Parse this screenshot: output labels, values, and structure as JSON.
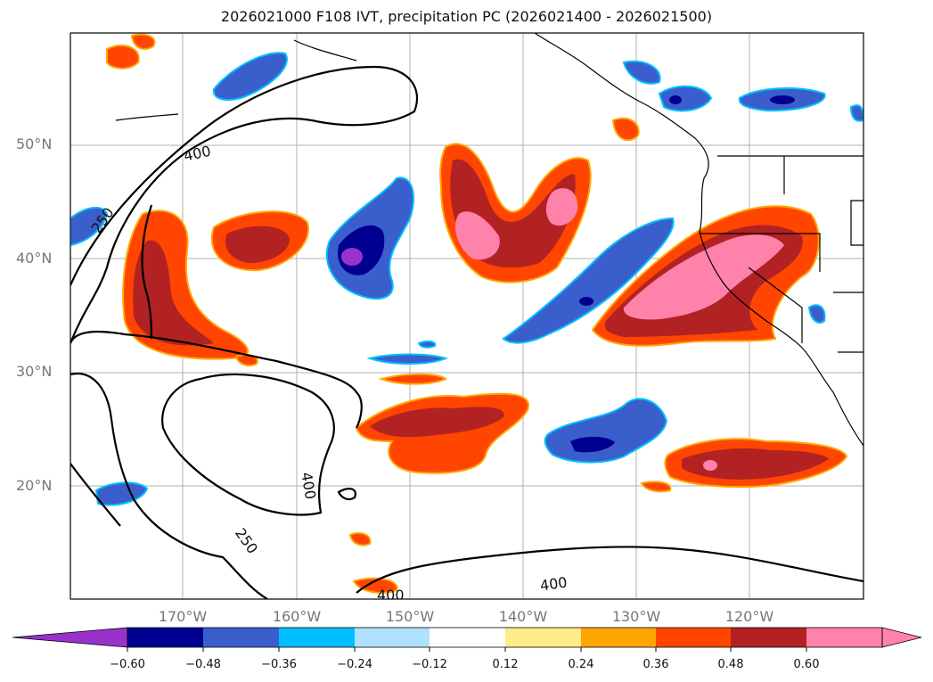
{
  "title": "2026021000 F108 IVT, precipitation PC (2026021400 - 2026021500)",
  "lat_labels": [
    "50°N",
    "40°N",
    "30°N",
    "20°N"
  ],
  "lon_labels": [
    "170°W",
    "160°W",
    "150°W",
    "140°W",
    "130°W",
    "120°W"
  ],
  "contour_labels": [
    "250",
    "400",
    "400",
    "250",
    "400",
    "400"
  ],
  "colorbar": {
    "tick_labels": [
      "−0.60",
      "−0.48",
      "−0.36",
      "−0.24",
      "−0.12",
      "0.12",
      "0.24",
      "0.36",
      "0.48",
      "0.60"
    ],
    "colors": [
      "#9932cc",
      "#000090",
      "#3a5fcd",
      "#00bfff",
      "#b0e2ff",
      "#ffffff",
      "#ffec8b",
      "#ffa500",
      "#ff4500",
      "#b22222",
      "#ff82ab"
    ]
  }
}
